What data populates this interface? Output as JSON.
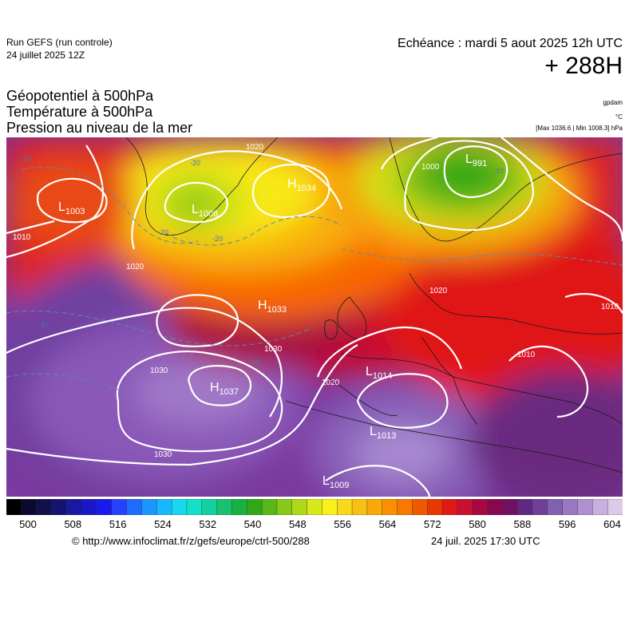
{
  "header": {
    "run_title": "Run GEFS (run controle)",
    "run_date": "24 juillet 2025 12Z",
    "valid_time": "Echéance : mardi 5 aout 2025 12h UTC",
    "lead_time": "+ 288H",
    "params": [
      "Géopotentiel à 500hPa",
      "Température à 500hPa",
      "Pression au niveau de la mer"
    ],
    "unit_geopotential": "gpdam",
    "unit_temperature": "°C",
    "pressure_range": "[Max 1036.6 | Min 1008.3] hPa"
  },
  "colors": {
    "scale": [
      "#000000",
      "#0a0a30",
      "#10104a",
      "#141470",
      "#1818a0",
      "#1818c8",
      "#1a1aee",
      "#2a40ff",
      "#1e6cff",
      "#1a96ff",
      "#18b8ff",
      "#18d8f0",
      "#14e0c8",
      "#14d0a0",
      "#18c070",
      "#18b040",
      "#30a818",
      "#58b818",
      "#88c818",
      "#b0d818",
      "#d8e818",
      "#f8f018",
      "#f8d818",
      "#f8c010",
      "#f8a808",
      "#f89000",
      "#f87800",
      "#f05800",
      "#e83800",
      "#e01818",
      "#c81030",
      "#a80840",
      "#880850",
      "#701060",
      "#602880",
      "#704098",
      "#8060b0",
      "#9878c0",
      "#b090d0",
      "#c8b0e0",
      "#dccbe8"
    ],
    "ocean_west": "#7040a0",
    "accent_contour": "#ffffff"
  },
  "colorbar": {
    "ticks": [
      "500",
      "508",
      "516",
      "524",
      "532",
      "540",
      "548",
      "556",
      "564",
      "572",
      "580",
      "588",
      "596",
      "604"
    ]
  },
  "map": {
    "pressure_centers": [
      {
        "kind": "L",
        "value": "1003"
      },
      {
        "kind": "L",
        "value": "1008"
      },
      {
        "kind": "H",
        "value": "1034"
      },
      {
        "kind": "L",
        "value": "991"
      },
      {
        "kind": "H",
        "value": "1033"
      },
      {
        "kind": "H",
        "value": "1037"
      },
      {
        "kind": "L",
        "value": "1014"
      },
      {
        "kind": "L",
        "value": "1013"
      },
      {
        "kind": "L",
        "value": "1009"
      }
    ],
    "isobar_labels": [
      "1010",
      "1020",
      "1030",
      "1030",
      "1030",
      "1020",
      "1010",
      "1010",
      "1000",
      "1020",
      "1020"
    ],
    "temperature_labels": [
      "-20",
      "-20",
      "-20",
      "-10",
      "-10",
      "-10",
      "-10"
    ]
  },
  "footer": {
    "url": "© http://www.infoclimat.fr/z/gefs/europe/ctrl-500/288",
    "generated": "24 juil. 2025 17:30 UTC"
  }
}
